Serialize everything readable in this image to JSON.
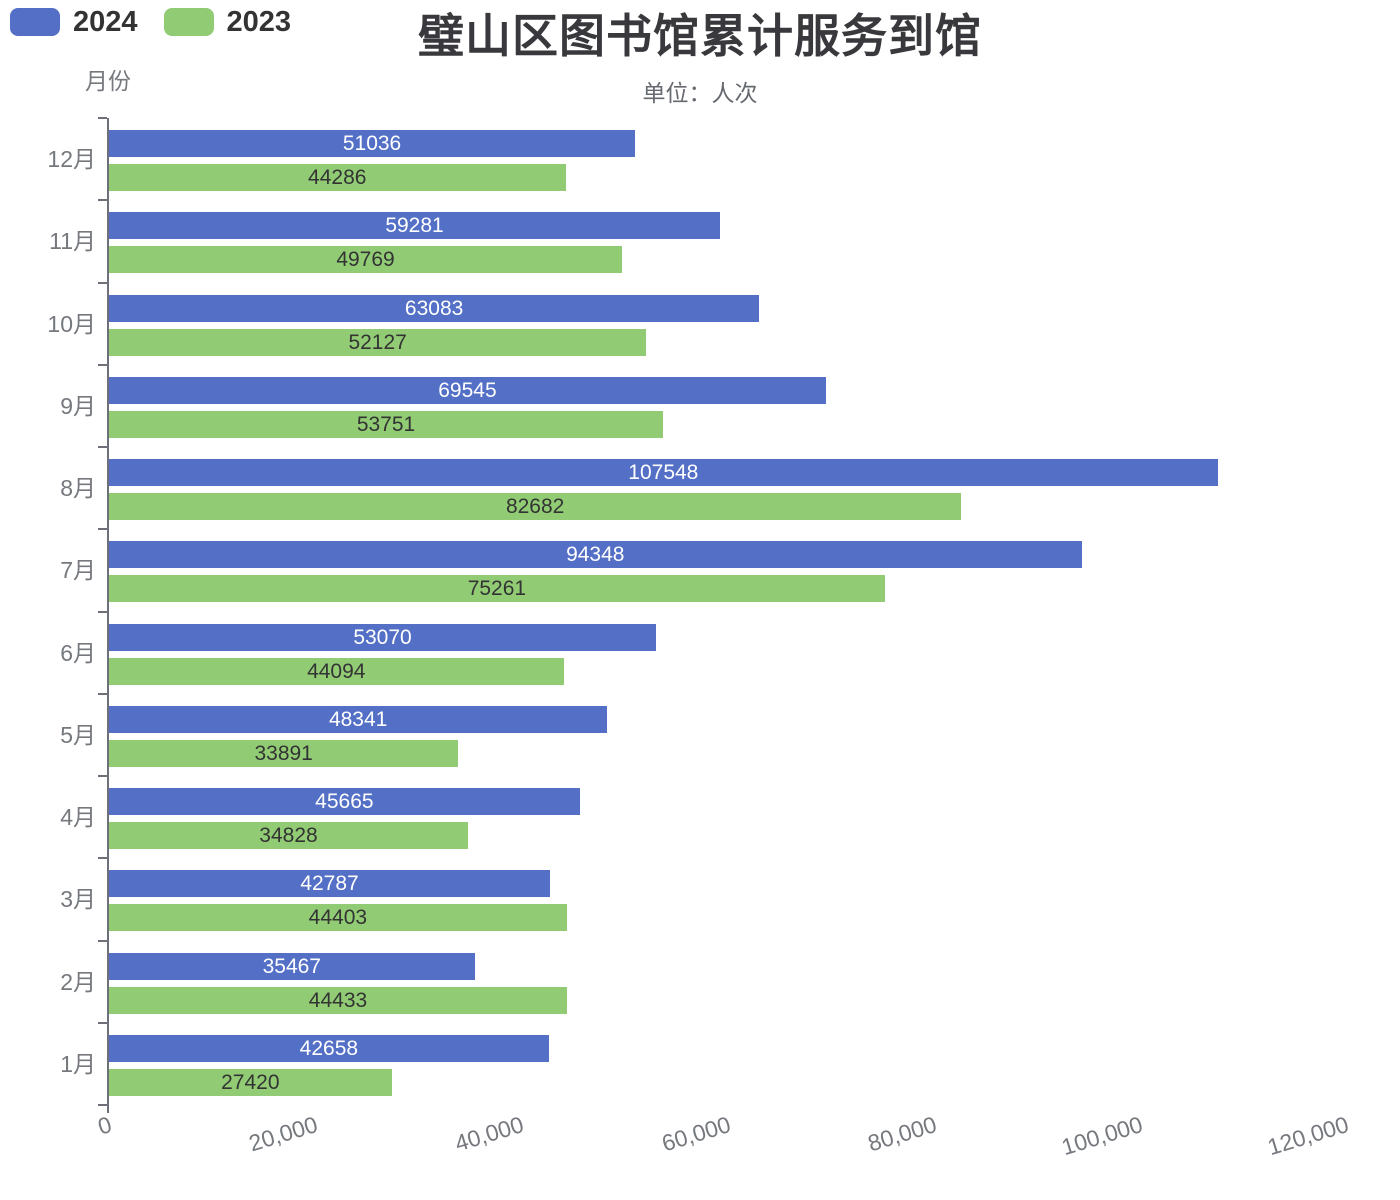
{
  "title": "璧山区图书馆累计服务到馆",
  "subtitle": "单位：人次",
  "y_axis_name": "月份",
  "legend": [
    {
      "label": "2024",
      "color": "#5470C6"
    },
    {
      "label": "2023",
      "color": "#91CC75"
    }
  ],
  "colors": {
    "bar_2024": "#5470C6",
    "bar_2023": "#91CC75",
    "axis": "#6E7079",
    "axis_label": "#75787d",
    "title": "#39393d",
    "label_on_blue": "#ffffff",
    "label_on_green": "#333333"
  },
  "chart_data": {
    "type": "bar",
    "orientation": "horizontal",
    "title": "璧山区图书馆累计服务到馆",
    "subtitle": "单位：人次",
    "ylabel": "月份",
    "categories": [
      "12月",
      "11月",
      "10月",
      "9月",
      "8月",
      "7月",
      "6月",
      "5月",
      "4月",
      "3月",
      "2月",
      "1月"
    ],
    "category_order": "top-to-bottom",
    "series": [
      {
        "name": "2024",
        "color": "#5470C6",
        "label_color": "#ffffff",
        "values": [
          51036,
          59281,
          63083,
          69545,
          107548,
          94348,
          53070,
          48341,
          45665,
          42787,
          35467,
          42658
        ]
      },
      {
        "name": "2023",
        "color": "#91CC75",
        "label_color": "#333333",
        "values": [
          44286,
          49769,
          52127,
          53751,
          82682,
          75261,
          44094,
          33891,
          34828,
          44403,
          44433,
          27420
        ]
      }
    ],
    "xlim": [
      0,
      120000
    ],
    "x_tick_labels": [
      "0",
      "20,000",
      "40,000",
      "60,000",
      "80,000",
      "100,000",
      "120,000"
    ],
    "x_tick_rotation_deg": -17,
    "value_labels_position": "inside",
    "grid": false,
    "x_axis_line": false,
    "legend_position": "top-left"
  }
}
